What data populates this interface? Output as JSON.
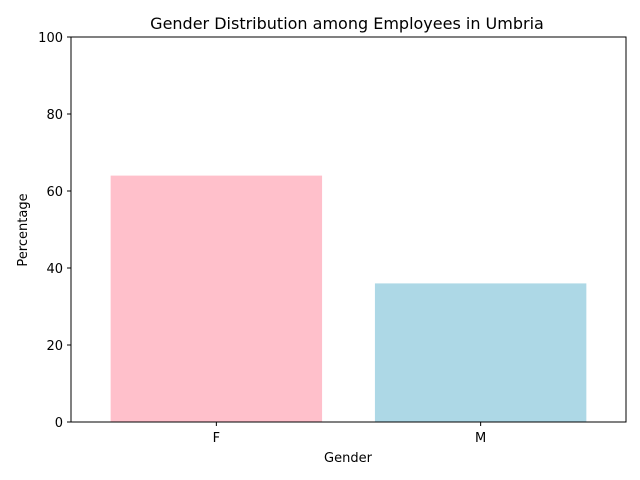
{
  "chart_data": {
    "type": "bar",
    "title": "Gender Distribution among Employees in Umbria",
    "xlabel": "Gender",
    "ylabel": "Percentage",
    "categories": [
      "F",
      "M"
    ],
    "values": [
      64,
      36
    ],
    "colors": [
      "#ffc0cb",
      "#add8e6"
    ],
    "ylim": [
      0,
      100
    ],
    "yticks": [
      0,
      20,
      40,
      60,
      80,
      100
    ],
    "grid": false,
    "legend": "none"
  }
}
